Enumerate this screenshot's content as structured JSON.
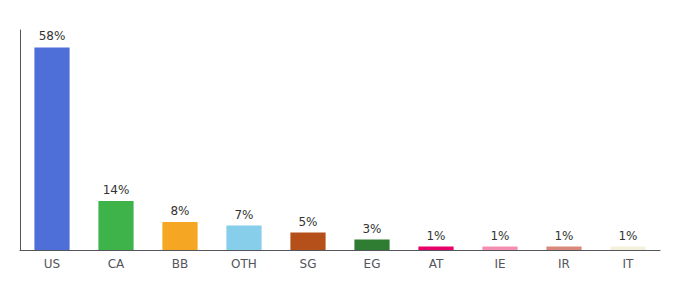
{
  "chart_data": {
    "type": "bar",
    "categories": [
      "US",
      "CA",
      "BB",
      "OTH",
      "SG",
      "EG",
      "AT",
      "IE",
      "IR",
      "IT"
    ],
    "values": [
      58,
      14,
      8,
      7,
      5,
      3,
      1,
      1,
      1,
      1
    ],
    "value_labels": [
      "58%",
      "14%",
      "8%",
      "7%",
      "5%",
      "3%",
      "1%",
      "1%",
      "1%",
      "1%"
    ],
    "colors": [
      "#4F6FD8",
      "#3DB34A",
      "#F5A623",
      "#87CEEB",
      "#B5501A",
      "#2E7D32",
      "#E8006A",
      "#F48FB1",
      "#D9897A",
      "#F5F0DC"
    ],
    "ylim": [
      0,
      63
    ],
    "data_labels": true,
    "tick_labels": "x",
    "grid": false
  }
}
